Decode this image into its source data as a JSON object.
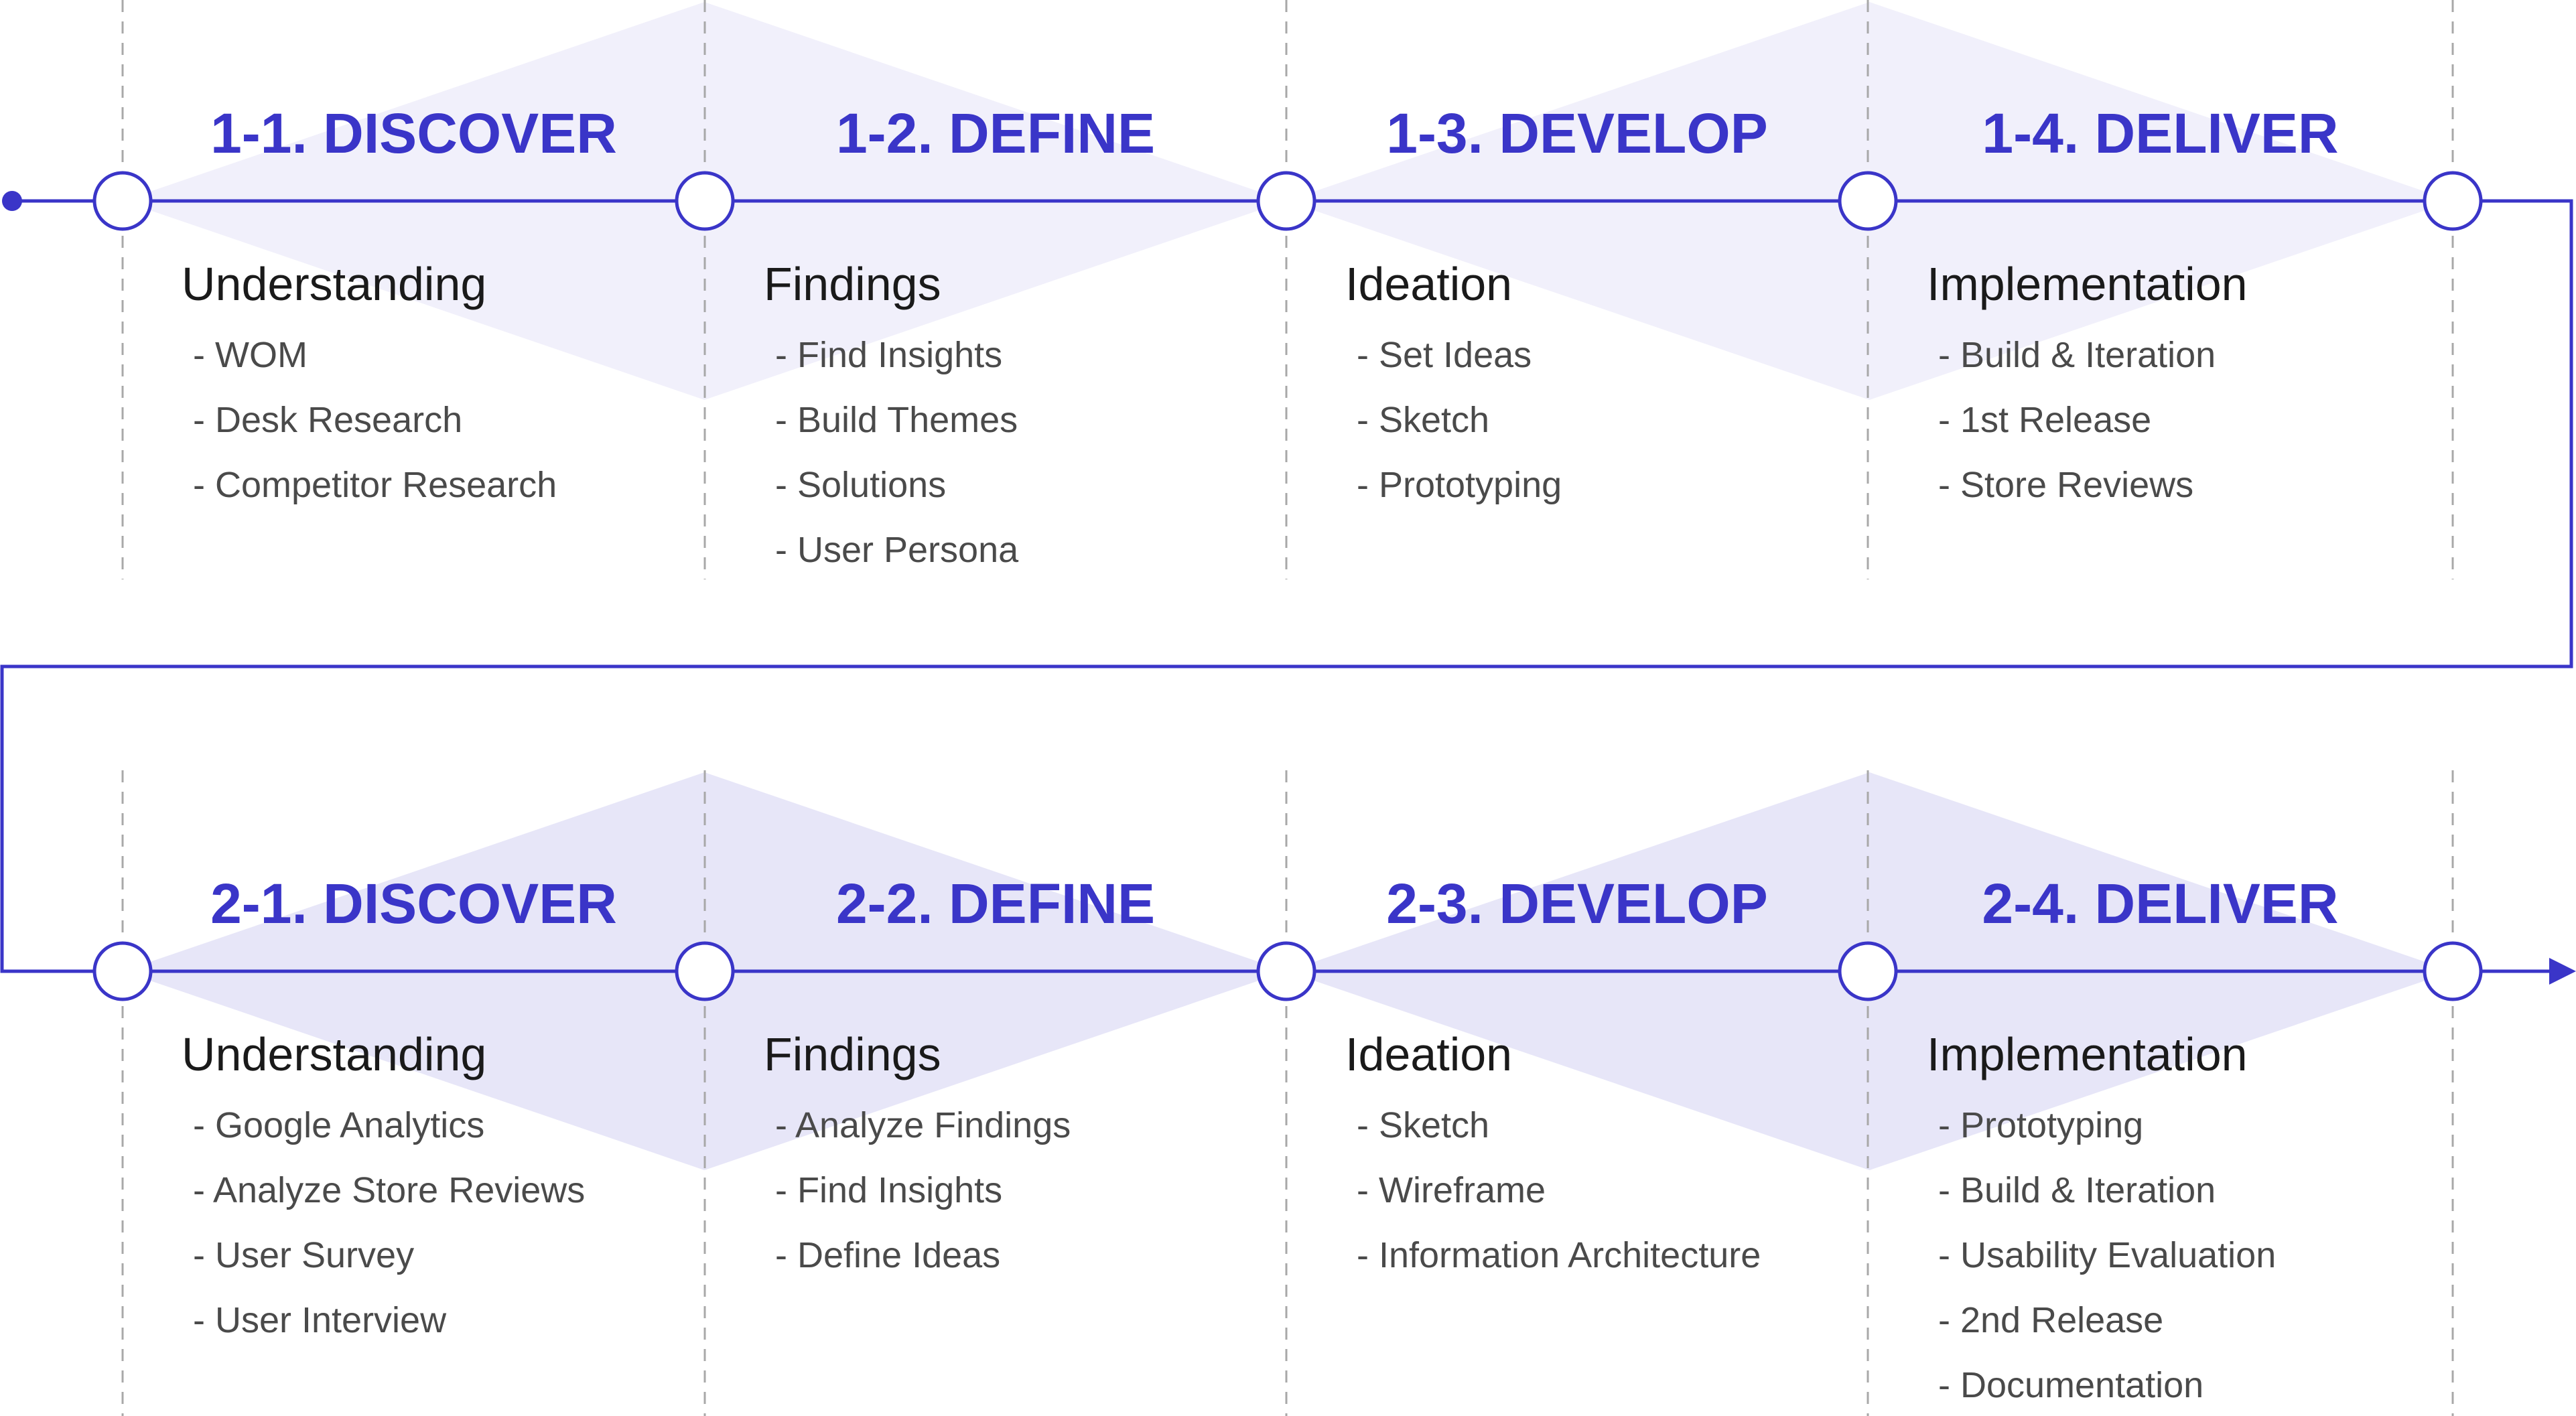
{
  "rows": [
    {
      "phases": [
        {
          "title": "1-1. DISCOVER",
          "group": "Understanding",
          "items": [
            "- WOM",
            "- Desk Research",
            "- Competitor Research"
          ]
        },
        {
          "title": "1-2. DEFINE",
          "group": "Findings",
          "items": [
            "- Find Insights",
            "- Build Themes",
            "- Solutions",
            "- User Persona"
          ]
        },
        {
          "title": "1-3. DEVELOP",
          "group": "Ideation",
          "items": [
            "- Set Ideas",
            "- Sketch",
            "- Prototyping"
          ]
        },
        {
          "title": "1-4. DELIVER",
          "group": "Implementation",
          "items": [
            "- Build & Iteration",
            "- 1st Release",
            "- Store Reviews"
          ]
        }
      ]
    },
    {
      "phases": [
        {
          "title": "2-1. DISCOVER",
          "group": "Understanding",
          "items": [
            "- Google Analytics",
            "- Analyze Store Reviews",
            "- User Survey",
            "- User Interview"
          ]
        },
        {
          "title": "2-2. DEFINE",
          "group": "Findings",
          "items": [
            "- Analyze Findings",
            "- Find Insights",
            "- Define Ideas"
          ]
        },
        {
          "title": "2-3. DEVELOP",
          "group": "Ideation",
          "items": [
            "- Sketch",
            "- Wireframe",
            "- Information Architecture"
          ]
        },
        {
          "title": "2-4. DELIVER",
          "group": "Implementation",
          "items": [
            "- Prototyping",
            "- Build & Iteration",
            "- Usability Evaluation",
            "- 2nd Release",
            "- Documentation"
          ]
        }
      ]
    }
  ],
  "colors": {
    "accent": "#3a35c8",
    "diamond_row1": "#f1f0fb",
    "diamond_row2": "#e7e6f8",
    "divider": "#a8a8a8",
    "group_text": "#1a1a1a",
    "item_text": "#4a4a4a"
  }
}
